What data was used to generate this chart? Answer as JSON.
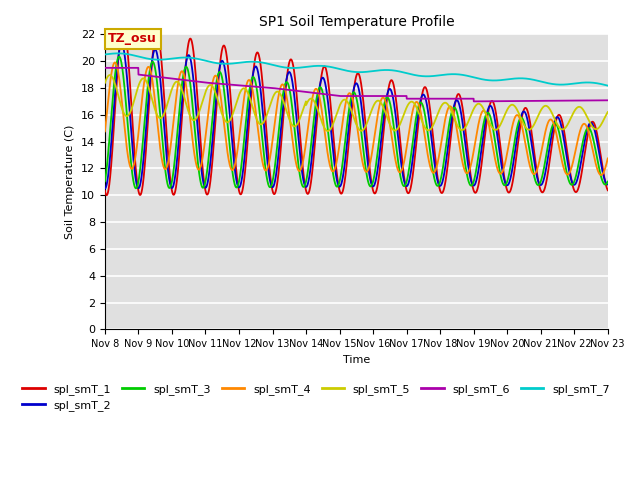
{
  "title": "SP1 Soil Temperature Profile",
  "xlabel": "Time",
  "ylabel": "Soil Temperature (C)",
  "ylim": [
    0,
    22
  ],
  "yticks": [
    0,
    2,
    4,
    6,
    8,
    10,
    12,
    14,
    16,
    18,
    20,
    22
  ],
  "xtick_labels": [
    "Nov 8",
    "Nov 9",
    "Nov 10",
    "Nov 11",
    "Nov 12",
    "Nov 13",
    "Nov 14",
    "Nov 15",
    "Nov 16",
    "Nov 17",
    "Nov 18",
    "Nov 19",
    "Nov 20",
    "Nov 21",
    "Nov 22",
    "Nov 23"
  ],
  "bg_color": "#e0e0e0",
  "grid_color": "#ffffff",
  "annotation_text": "TZ_osu",
  "annotation_bg": "#ffffcc",
  "annotation_border": "#ccaa00",
  "series_colors": {
    "spl_smT_1": "#dd0000",
    "spl_smT_2": "#0000cc",
    "spl_smT_3": "#00cc00",
    "spl_smT_4": "#ff8800",
    "spl_smT_5": "#cccc00",
    "spl_smT_6": "#aa00aa",
    "spl_smT_7": "#00cccc"
  }
}
